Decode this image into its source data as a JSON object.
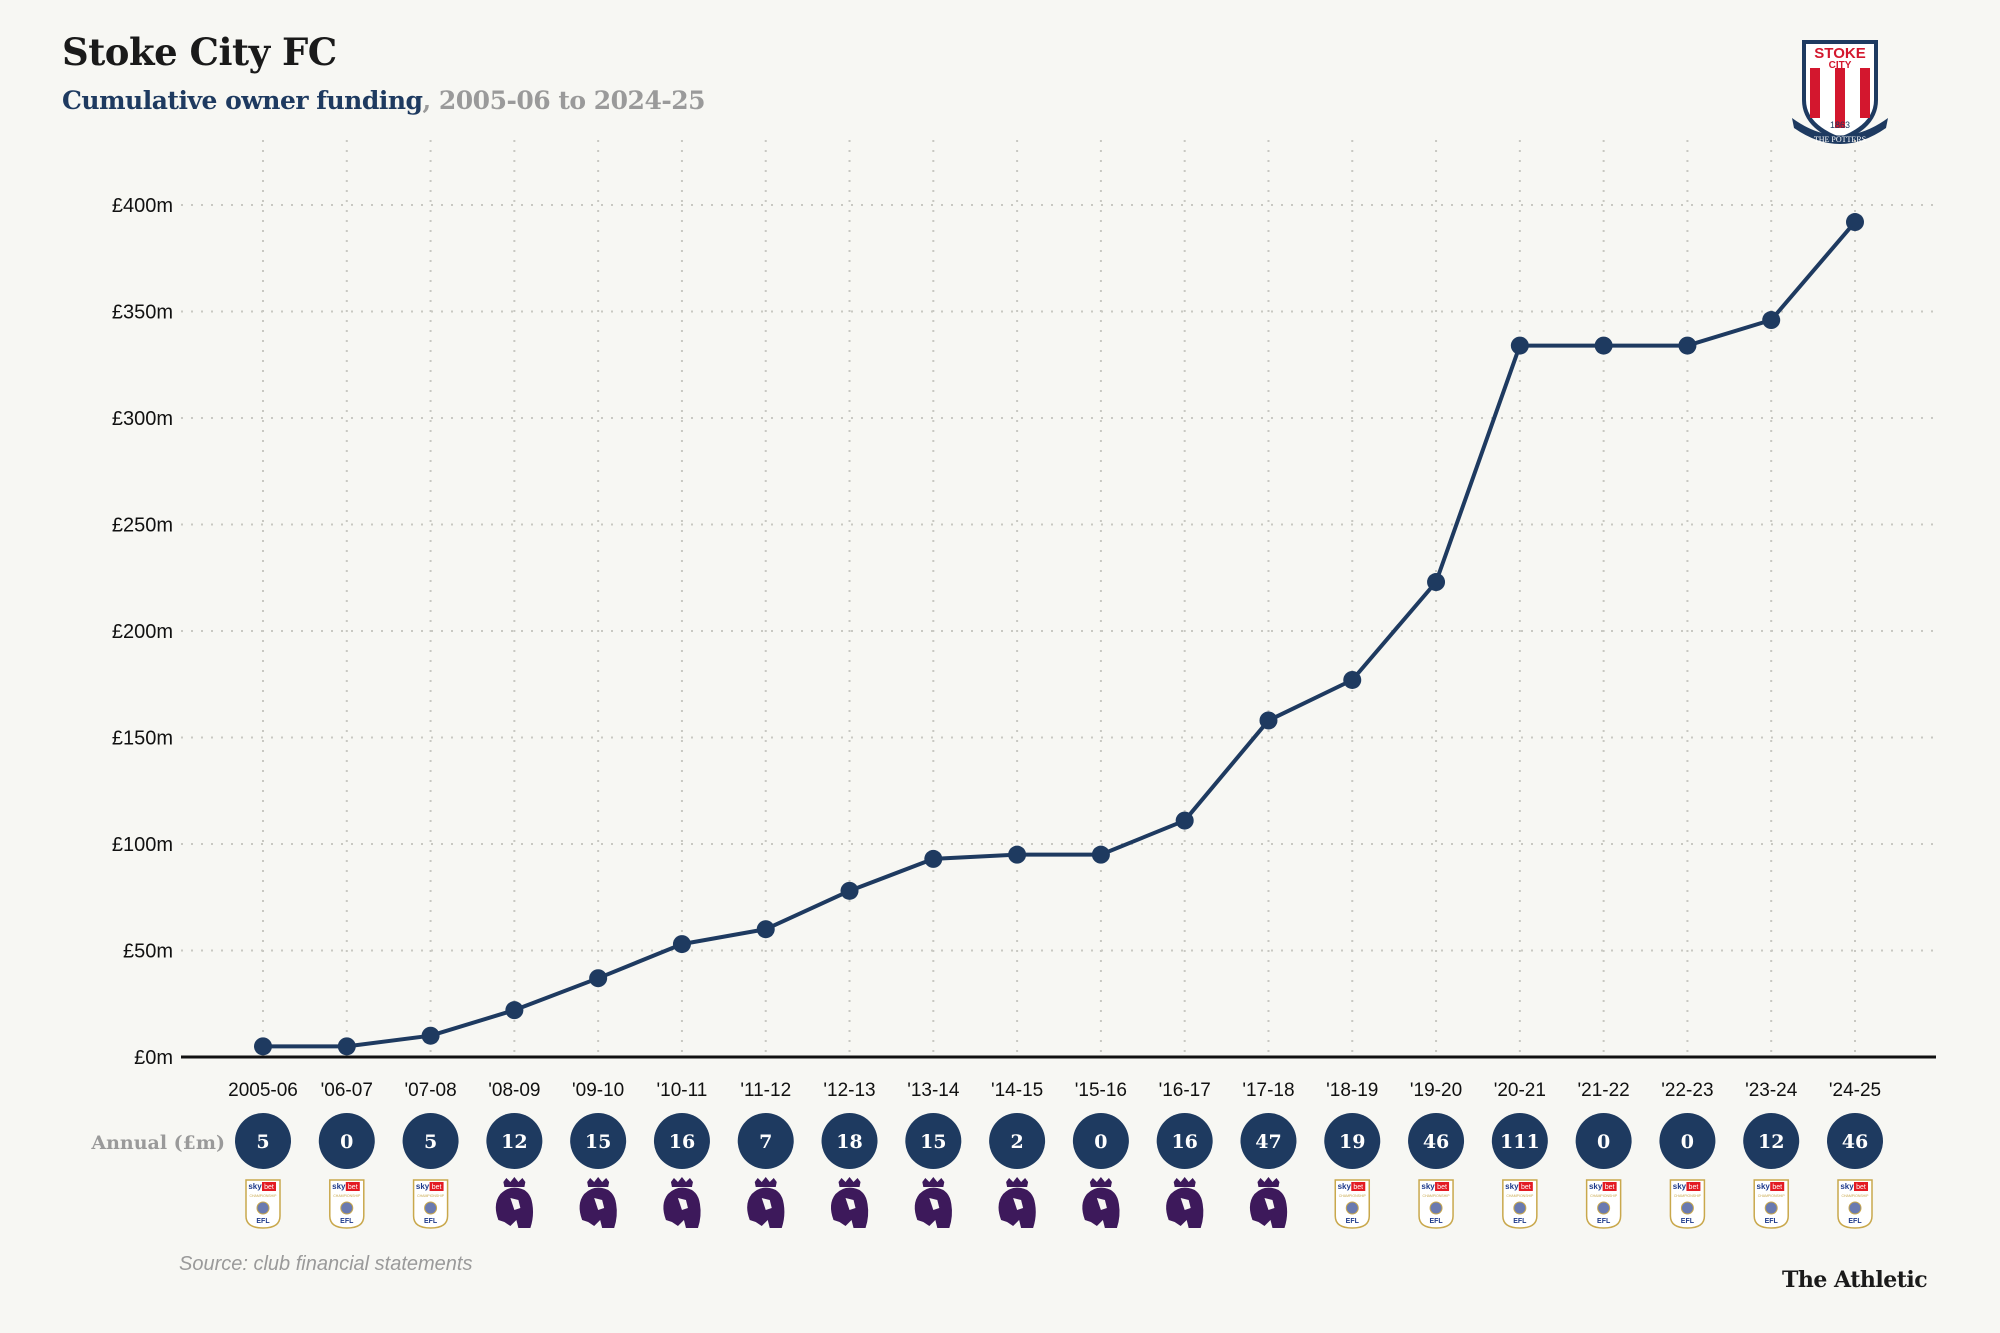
{
  "header": {
    "title": "Stoke City FC",
    "subtitle_highlight": "Cumulative owner funding",
    "subtitle_rest": ", 2005-06 to 2024-25"
  },
  "crest": {
    "top_text": "STOKE",
    "mid_text": "CITY",
    "year": "1863",
    "banner": "THE POTTERS"
  },
  "colors": {
    "line": "#1e3a60",
    "circle": "#1e3a60",
    "premier_league": "#3d195b",
    "efl_red": "#e31b23",
    "efl_gold": "#c9a84c",
    "crest_red": "#d3172e"
  },
  "chart_data": {
    "type": "line",
    "title": "Cumulative owner funding",
    "xlabel": "",
    "ylabel": "",
    "ylim": [
      0,
      400
    ],
    "yticks": [
      0,
      50,
      100,
      150,
      200,
      250,
      300,
      350,
      400
    ],
    "ytick_labels": [
      "£0m",
      "£50m",
      "£100m",
      "£150m",
      "£200m",
      "£250m",
      "£300m",
      "£350m",
      "£400m"
    ],
    "grid": true,
    "categories": [
      "2005-06",
      "'06-07",
      "'07-08",
      "'08-09",
      "'09-10",
      "'10-11",
      "'11-12",
      "'12-13",
      "'13-14",
      "'14-15",
      "'15-16",
      "'16-17",
      "'17-18",
      "'18-19",
      "'19-20",
      "'20-21",
      "'21-22",
      "'22-23",
      "'23-24",
      "'24-25"
    ],
    "series": [
      {
        "name": "Cumulative owner funding (£m)",
        "values": [
          5,
          5,
          10,
          22,
          37,
          53,
          60,
          78,
          93,
          95,
          95,
          111,
          158,
          177,
          223,
          334,
          334,
          334,
          346,
          392
        ]
      }
    ],
    "annual_label": "Annual (£m)",
    "annual": [
      5,
      0,
      5,
      12,
      15,
      16,
      7,
      18,
      15,
      2,
      0,
      16,
      47,
      19,
      46,
      111,
      0,
      0,
      12,
      46
    ],
    "league": [
      "championship",
      "championship",
      "championship",
      "premier-league",
      "premier-league",
      "premier-league",
      "premier-league",
      "premier-league",
      "premier-league",
      "premier-league",
      "premier-league",
      "premier-league",
      "premier-league",
      "championship",
      "championship",
      "championship",
      "championship",
      "championship",
      "championship",
      "championship"
    ]
  },
  "footer": {
    "source": "Source: club financial statements",
    "brand": "The Athletic"
  },
  "efl_badge": {
    "sky": "sky",
    "bet": "bet",
    "name": "CHAMPIONSHIP",
    "efl": "EFL"
  }
}
